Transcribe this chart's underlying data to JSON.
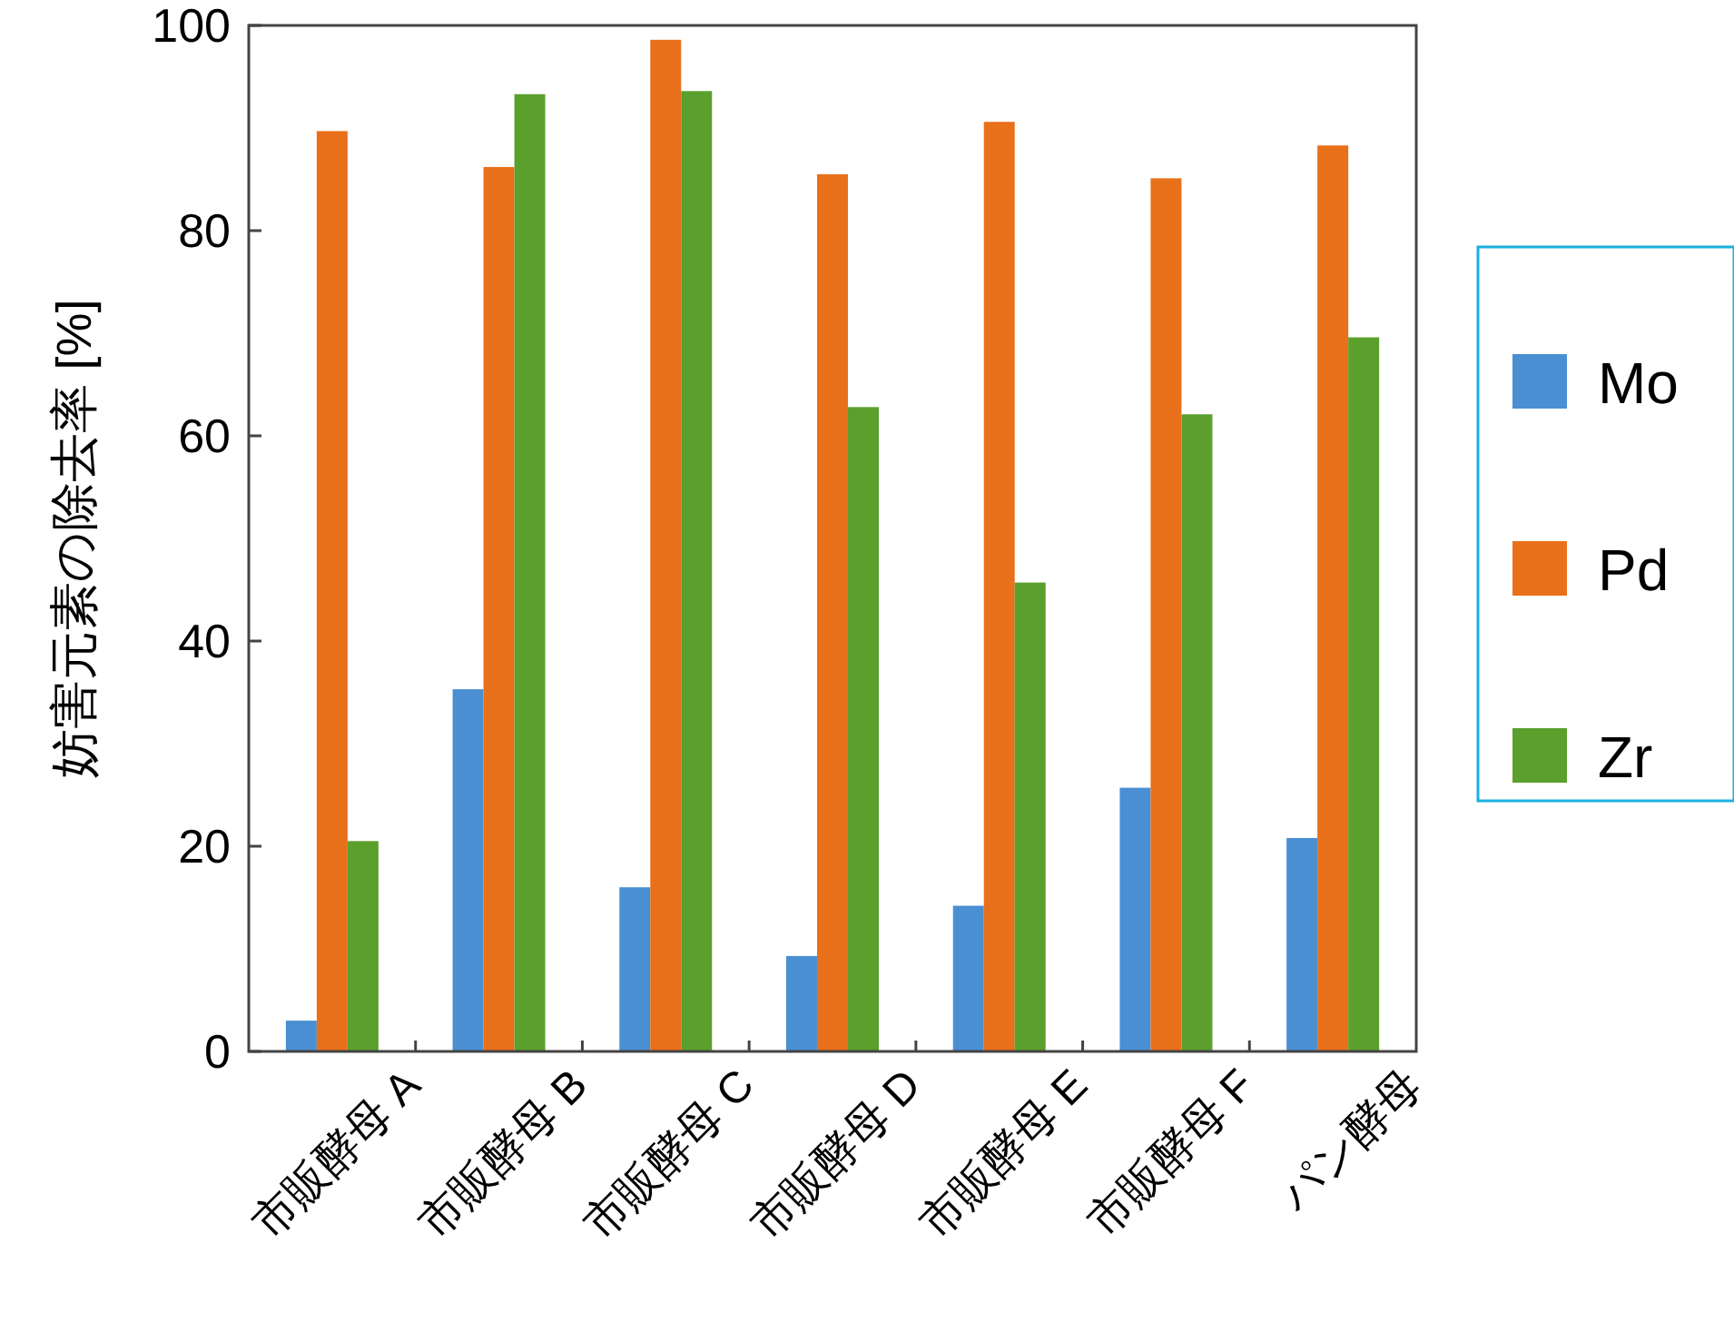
{
  "chart_data": {
    "type": "bar",
    "ylabel": "妨害元素の除去率 [%]",
    "categories": [
      "市販酵母 A",
      "市販酵母 B",
      "市販酵母 C",
      "市販酵母 D",
      "市販酵母 E",
      "市販酵母 F",
      "パン酵母"
    ],
    "series": [
      {
        "name": "Mo",
        "color": "#4a8fd2",
        "values": [
          3,
          35.3,
          16,
          9.3,
          14.2,
          25.7,
          20.8
        ]
      },
      {
        "name": "Pd",
        "color": "#e8701a",
        "values": [
          89.7,
          86.2,
          98.6,
          85.5,
          90.6,
          85.1,
          88.3
        ]
      },
      {
        "name": "Zr",
        "color": "#5b9f2d",
        "values": [
          20.5,
          93.3,
          93.6,
          62.8,
          45.7,
          62.1,
          69.6
        ]
      }
    ],
    "ylim": [
      0,
      100
    ],
    "yticks": [
      0,
      20,
      40,
      60,
      80,
      100
    ],
    "legend": "right",
    "grid": false
  }
}
